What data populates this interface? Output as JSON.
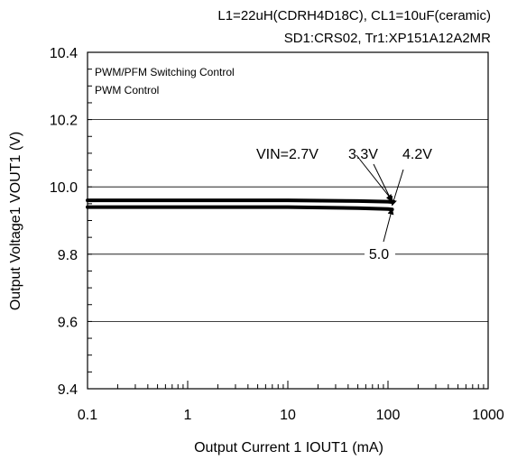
{
  "chart_data": {
    "type": "line",
    "header_lines": [
      "L1=22uH(CDRH4D18C), CL1=10uF(ceramic)",
      "SD1:CRS02, Tr1:XP151A12A2MR"
    ],
    "legend_box_lines": [
      "PWM/PFM Switching Control",
      "PWM  Control"
    ],
    "xlabel": "Output Current 1 IOUT1 (mA)",
    "ylabel": "Output Voltage1  VOUT1 (V)",
    "x_scale": "log",
    "xlim": [
      0.1,
      1000
    ],
    "ylim": [
      9.4,
      10.4
    ],
    "x_ticks": [
      0.1,
      1,
      10,
      100,
      1000
    ],
    "x_tick_labels": [
      "0.1",
      "1",
      "10",
      "100",
      "1000"
    ],
    "y_ticks": [
      9.4,
      9.6,
      9.8,
      10.0,
      10.2,
      10.4
    ],
    "y_tick_labels": [
      "9.4",
      "9.6",
      "9.8",
      "10.0",
      "10.2",
      "10.4"
    ],
    "grid": "horizontal",
    "series": [
      {
        "x": [
          0.1,
          1,
          10,
          50,
          100,
          110
        ],
        "y": [
          9.96,
          9.96,
          9.96,
          9.958,
          9.956,
          9.955
        ]
      },
      {
        "x": [
          0.1,
          1,
          10,
          50,
          100,
          110
        ],
        "y": [
          9.94,
          9.94,
          9.94,
          9.937,
          9.934,
          9.933
        ]
      }
    ],
    "annotations": [
      {
        "text": "VIN=2.7V",
        "points_to": [
          110,
          9.96
        ]
      },
      {
        "text": "3.3V",
        "points_to": [
          110,
          9.955
        ]
      },
      {
        "text": "4.2V",
        "points_to": [
          110,
          9.945
        ]
      },
      {
        "text": "5.0",
        "points_to": [
          110,
          9.935
        ]
      }
    ],
    "line_color": "#000000"
  }
}
